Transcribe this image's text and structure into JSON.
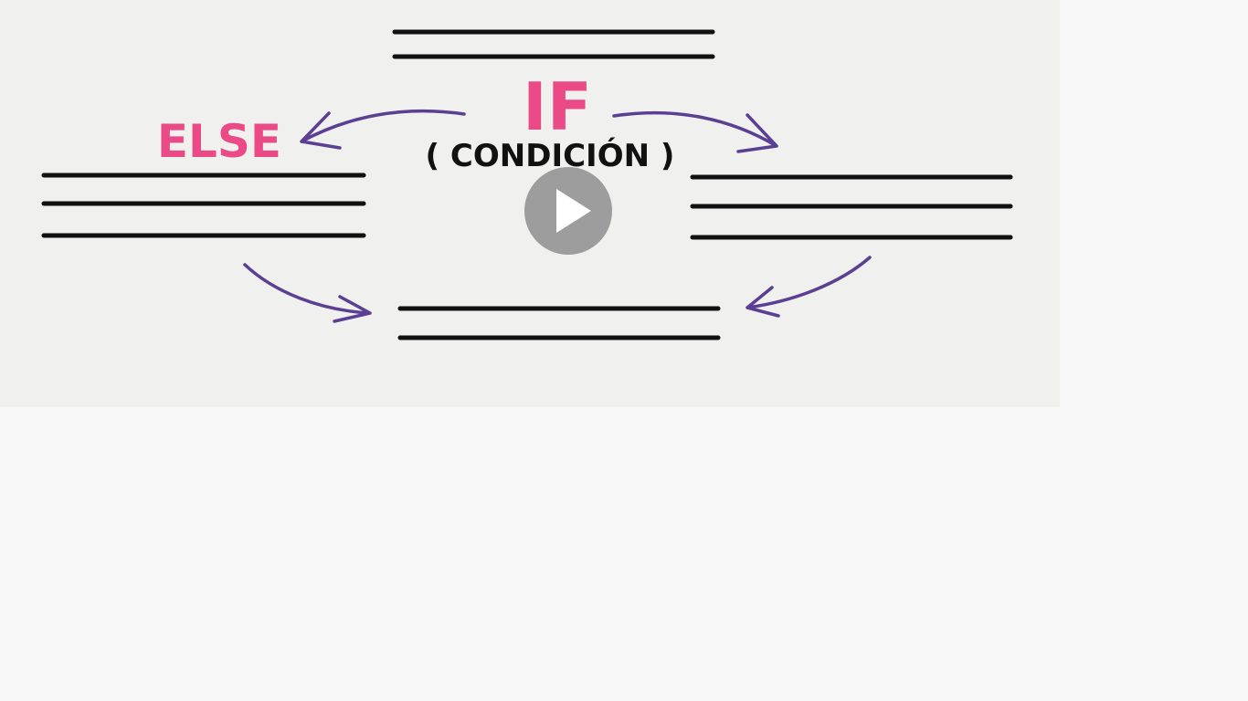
{
  "video": {
    "labels": {
      "if": "IF",
      "condition": "( CONDICIÓN )",
      "else": "ELSE"
    }
  }
}
